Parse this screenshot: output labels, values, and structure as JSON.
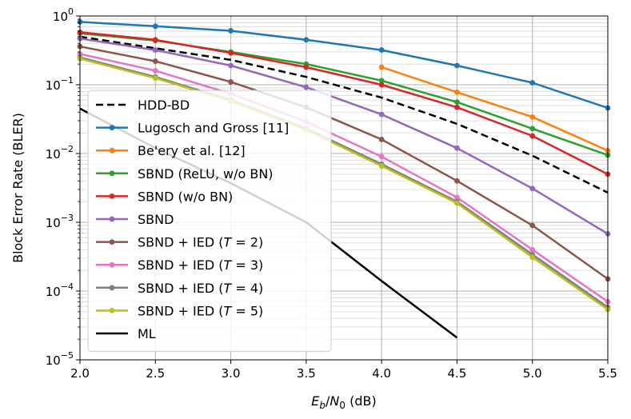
{
  "chart_data": {
    "type": "line",
    "xlabel": "E_b/N_0 (dB)",
    "ylabel": "Block Error Rate (BLER)",
    "scale_y": "log",
    "xlim": [
      2.0,
      5.5
    ],
    "ylim": [
      1e-05,
      1
    ],
    "grid": "major and minor",
    "legend_position": "lower-left",
    "x_ticks": [
      "2.0",
      "2.5",
      "3.0",
      "3.5",
      "4.0",
      "4.5",
      "5.0",
      "5.5"
    ],
    "y_tick_exponents": [
      "0",
      "−1",
      "−2",
      "−3",
      "−4",
      "−5"
    ],
    "y_tick_base": "10",
    "series": [
      {
        "name": "HDD-BD",
        "color": "#000000",
        "dash": "dashed",
        "marker": false,
        "x": [
          2.0,
          2.5,
          3.0,
          3.5,
          4.0,
          4.5,
          5.0,
          5.5
        ],
        "y": [
          0.5,
          0.34,
          0.23,
          0.13,
          0.065,
          0.027,
          0.0093,
          0.0027
        ]
      },
      {
        "name": "Lugosch and Gross [11]",
        "color": "#1f77b4",
        "dash": "solid",
        "marker": true,
        "x": [
          2.0,
          2.5,
          3.0,
          3.5,
          4.0,
          4.5,
          5.0,
          5.5
        ],
        "y": [
          0.82,
          0.71,
          0.61,
          0.45,
          0.32,
          0.19,
          0.107,
          0.046
        ]
      },
      {
        "name": "Be'ery et al. [12]",
        "color": "#ff7f0e",
        "dash": "solid",
        "marker": true,
        "x": [
          4.0,
          4.5,
          5.0,
          5.5
        ],
        "y": [
          0.18,
          0.078,
          0.034,
          0.011
        ]
      },
      {
        "name": "SBND (ReLU, w/o BN)",
        "color": "#2ca02c",
        "dash": "solid",
        "marker": true,
        "x": [
          2.0,
          2.5,
          3.0,
          3.5,
          4.0,
          4.5,
          5.0,
          5.5
        ],
        "y": [
          0.56,
          0.44,
          0.3,
          0.2,
          0.115,
          0.056,
          0.023,
          0.0095
        ]
      },
      {
        "name": "SBND (w/o BN)",
        "color": "#d62728",
        "dash": "solid",
        "marker": true,
        "x": [
          2.0,
          2.5,
          3.0,
          3.5,
          4.0,
          4.5,
          5.0,
          5.5
        ],
        "y": [
          0.58,
          0.45,
          0.29,
          0.18,
          0.1,
          0.047,
          0.018,
          0.005
        ]
      },
      {
        "name": "SBND",
        "color": "#9467bd",
        "dash": "solid",
        "marker": true,
        "x": [
          2.0,
          2.5,
          3.0,
          3.5,
          4.0,
          4.5,
          5.0,
          5.5
        ],
        "y": [
          0.47,
          0.32,
          0.19,
          0.092,
          0.037,
          0.012,
          0.0031,
          0.00068
        ]
      },
      {
        "name": "SBND + IED (T = 2)",
        "color": "#8c564b",
        "dash": "solid",
        "marker": true,
        "x": [
          2.0,
          2.5,
          3.0,
          3.5,
          4.0,
          4.5,
          5.0,
          5.5
        ],
        "y": [
          0.36,
          0.22,
          0.11,
          0.047,
          0.016,
          0.004,
          0.0009,
          0.00015
        ]
      },
      {
        "name": "SBND + IED (T = 3)",
        "color": "#e377c2",
        "dash": "solid",
        "marker": true,
        "x": [
          2.0,
          2.5,
          3.0,
          3.5,
          4.0,
          4.5,
          5.0,
          5.5
        ],
        "y": [
          0.28,
          0.16,
          0.074,
          0.029,
          0.009,
          0.0023,
          0.0004,
          7e-05
        ]
      },
      {
        "name": "SBND + IED (T = 4)",
        "color": "#7f7f7f",
        "dash": "solid",
        "marker": true,
        "x": [
          2.0,
          2.5,
          3.0,
          3.5,
          4.0,
          4.5,
          5.0,
          5.5
        ],
        "y": [
          0.25,
          0.13,
          0.06,
          0.023,
          0.007,
          0.002,
          0.00034,
          5.8e-05
        ]
      },
      {
        "name": "SBND + IED (T = 5)",
        "color": "#bcbd22",
        "dash": "solid",
        "marker": true,
        "x": [
          2.0,
          2.5,
          3.0,
          3.5,
          4.0,
          4.5,
          5.0,
          5.5
        ],
        "y": [
          0.24,
          0.125,
          0.058,
          0.022,
          0.0066,
          0.0019,
          0.00031,
          5.4e-05
        ]
      },
      {
        "name": "ML",
        "color": "#000000",
        "dash": "solid",
        "marker": false,
        "x": [
          2.0,
          2.5,
          3.0,
          3.5,
          4.0,
          4.5
        ],
        "y": [
          0.045,
          0.012,
          0.0037,
          0.001,
          0.00014,
          2.1e-05
        ]
      }
    ]
  }
}
